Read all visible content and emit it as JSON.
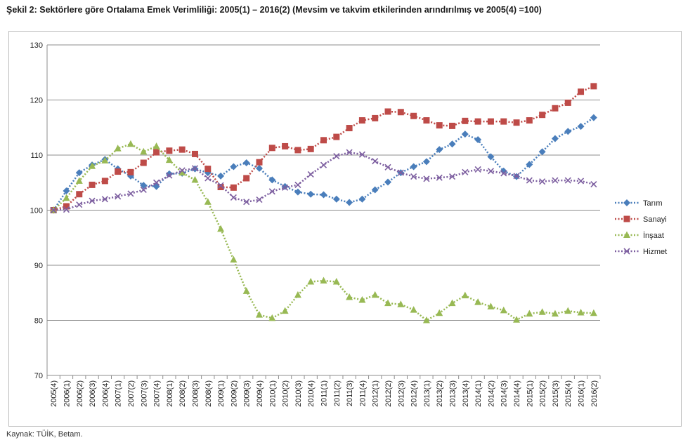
{
  "title": "Şekil 2: Sektörlere göre Ortalama Emek Verimliliği: 2005(1) – 2016(2) (Mevsim ve takvim etkilerinden arındırılmış ve 2005(4) =100)",
  "source": "Kaynak: TÜİK, Betam.",
  "chart_data": {
    "type": "line",
    "ylim": [
      70,
      130
    ],
    "yticks": [
      70,
      80,
      90,
      100,
      110,
      120,
      130
    ],
    "grid": true,
    "legend_position": "right",
    "categories": [
      "2005(4)",
      "2006(1)",
      "2006(2)",
      "2006(3)",
      "2006(4)",
      "2007(1)",
      "2007(2)",
      "2007(3)",
      "2007(4)",
      "2008(1)",
      "2008(2)",
      "2008(3)",
      "2008(4)",
      "2009(1)",
      "2009(2)",
      "2009(3)",
      "2009(4)",
      "2010(1)",
      "2010(2)",
      "2010(3)",
      "2010(4)",
      "2011(1)",
      "2011(2)",
      "2011(3)",
      "2011(4)",
      "2012(1)",
      "2012(2)",
      "2012(3)",
      "2012(4)",
      "2013(1)",
      "2013(2)",
      "2013(3)",
      "2013(4)",
      "2014(1)",
      "2014(2)",
      "2014(3)",
      "2014(4)",
      "2015(1)",
      "2015(2)",
      "2015(3)",
      "2015(4)",
      "2016(1)",
      "2016(2)"
    ],
    "series": [
      {
        "name": "Tarım",
        "color": "#4a7ebb",
        "marker": "diamond",
        "values": [
          100,
          103.5,
          106.8,
          108.2,
          109.2,
          107.5,
          106.2,
          104.5,
          104.3,
          106.6,
          106.7,
          107.5,
          106.8,
          106.2,
          107.9,
          108.6,
          107.6,
          105.5,
          104.3,
          103.3,
          102.9,
          102.8,
          102.0,
          101.4,
          102.0,
          103.7,
          105.1,
          106.8,
          107.9,
          108.8,
          111.0,
          112.0,
          113.8,
          112.8,
          109.7,
          107.1,
          106.1,
          108.3,
          110.6,
          113.0,
          114.3,
          115.2,
          116.8
        ]
      },
      {
        "name": "Sanayi",
        "color": "#be4b48",
        "marker": "square",
        "values": [
          100,
          100.7,
          102.9,
          104.6,
          105.3,
          107.0,
          106.9,
          108.6,
          110.5,
          110.8,
          111.0,
          110.2,
          107.5,
          104.2,
          104.1,
          105.8,
          108.7,
          111.3,
          111.6,
          110.9,
          111.1,
          112.7,
          113.3,
          114.9,
          116.3,
          116.7,
          117.9,
          117.8,
          117.1,
          116.3,
          115.4,
          115.3,
          116.2,
          116.1,
          116.1,
          116.1,
          115.9,
          116.3,
          117.3,
          118.5,
          119.5,
          121.5,
          122.5
        ]
      },
      {
        "name": "İnşaat",
        "color": "#98b954",
        "marker": "triangle",
        "values": [
          100,
          102.2,
          105.3,
          108.0,
          109.0,
          111.2,
          112.0,
          110.6,
          111.6,
          109.1,
          106.8,
          105.5,
          101.5,
          96.6,
          91.0,
          85.3,
          81.0,
          80.4,
          81.7,
          84.6,
          87.0,
          87.2,
          87.0,
          84.2,
          83.7,
          84.6,
          83.1,
          82.9,
          81.9,
          80.0,
          81.3,
          83.1,
          84.5,
          83.3,
          82.5,
          81.8,
          80.1,
          81.2,
          81.5,
          81.2,
          81.7,
          81.4,
          81.3
        ]
      },
      {
        "name": "Hizmet",
        "color": "#7d5fa0",
        "marker": "x",
        "values": [
          100,
          100.1,
          101.0,
          101.7,
          102.0,
          102.5,
          103.0,
          103.7,
          105.0,
          106.3,
          107.2,
          107.6,
          105.8,
          104.5,
          102.3,
          101.5,
          101.9,
          103.4,
          104.1,
          104.6,
          106.5,
          108.2,
          109.8,
          110.5,
          110.1,
          108.9,
          107.8,
          106.8,
          106.1,
          105.7,
          105.9,
          106.1,
          106.9,
          107.4,
          107.1,
          106.7,
          106.2,
          105.4,
          105.2,
          105.4,
          105.4,
          105.3,
          104.7
        ]
      }
    ]
  }
}
